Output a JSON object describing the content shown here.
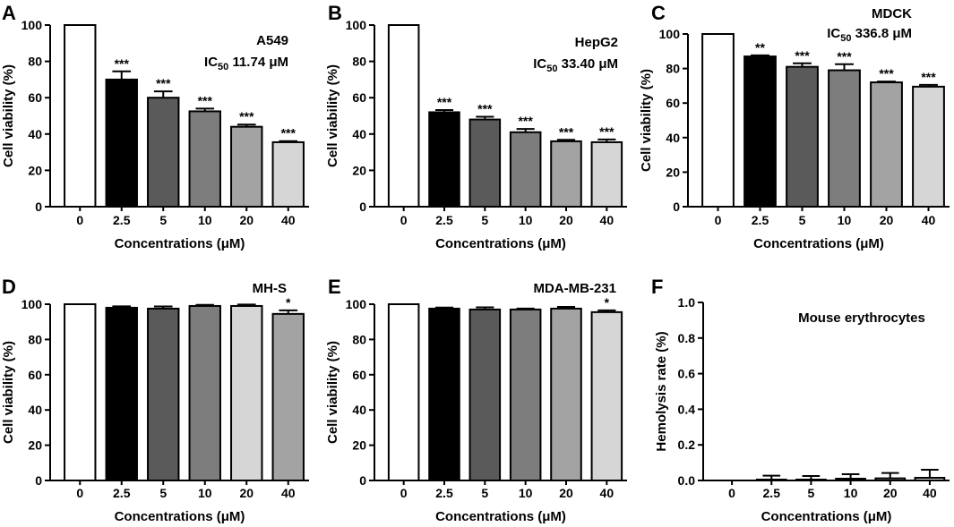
{
  "figure": {
    "xlabel": "Concentrations (μM)",
    "ylabel_viability": "Cell viability (%)",
    "ylabel_hemolysis": "Hemolysis rate (%)"
  },
  "colors": {
    "bar_fills": [
      "#ffffff",
      "#000000",
      "#5a5a5a",
      "#7d7d7d",
      "#a3a3a3",
      "#d6d6d6"
    ],
    "panel_d_fills": [
      "#ffffff",
      "#000000",
      "#5a5a5a",
      "#7d7d7d",
      "#d6d6d6",
      "#a3a3a3"
    ],
    "stroke": "#000000"
  },
  "chart_data": [
    {
      "panel": "A",
      "type": "bar",
      "label_line1": "A549",
      "ic50_prefix": "IC",
      "ic50_sub": "50",
      "ic50_value": " 11.74 μM",
      "categories": [
        "0",
        "2.5",
        "5",
        "10",
        "20",
        "40"
      ],
      "values": [
        100,
        70,
        60,
        52.5,
        44,
        35.5
      ],
      "errors": [
        0,
        4.5,
        3.5,
        1.5,
        1.2,
        0.6
      ],
      "significance": [
        "",
        "***",
        "***",
        "***",
        "***",
        "***"
      ],
      "ylim": [
        0,
        100
      ],
      "yticks": [
        "0",
        "20",
        "40",
        "60",
        "80",
        "100"
      ],
      "xlabel": "Concentrations (μM)",
      "ylabel": "Cell viability (%)"
    },
    {
      "panel": "B",
      "type": "bar",
      "label_line1": "HepG2",
      "ic50_prefix": "IC",
      "ic50_sub": "50",
      "ic50_value": " 33.40 μM",
      "categories": [
        "0",
        "2.5",
        "5",
        "10",
        "20",
        "40"
      ],
      "values": [
        100,
        52,
        48,
        41,
        36,
        35.5
      ],
      "errors": [
        0,
        1.2,
        1.5,
        1.8,
        0.8,
        1.5
      ],
      "significance": [
        "",
        "***",
        "***",
        "***",
        "***",
        "***"
      ],
      "ylim": [
        0,
        100
      ],
      "yticks": [
        "0",
        "20",
        "40",
        "60",
        "80",
        "100"
      ],
      "xlabel": "Concentrations (μM)",
      "ylabel": "Cell viability (%)"
    },
    {
      "panel": "C",
      "type": "bar",
      "label_line1": "MDCK",
      "ic50_prefix": "IC",
      "ic50_sub": "50",
      "ic50_value": " 336.8 μM",
      "categories": [
        "0",
        "2.5",
        "5",
        "10",
        "20",
        "40"
      ],
      "values": [
        100,
        87,
        81,
        79,
        72,
        69.5
      ],
      "errors": [
        0,
        0.6,
        2,
        3.5,
        0.5,
        1
      ],
      "significance": [
        "",
        "**",
        "***",
        "***",
        "***",
        "***"
      ],
      "ylim": [
        0,
        100
      ],
      "yticks": [
        "0",
        "20",
        "40",
        "60",
        "80",
        "100"
      ],
      "xlabel": "Concentrations (μM)",
      "ylabel": "Cell viability (%)"
    },
    {
      "panel": "D",
      "type": "bar",
      "label_line1": "MH-S",
      "categories": [
        "0",
        "2.5",
        "5",
        "10",
        "20",
        "40"
      ],
      "values": [
        100,
        98,
        97.5,
        99,
        99,
        94.5
      ],
      "errors": [
        0,
        0.8,
        1.2,
        0.6,
        0.8,
        2
      ],
      "significance": [
        "",
        "",
        "",
        "",
        "",
        "*"
      ],
      "ylim": [
        0,
        100
      ],
      "yticks": [
        "0",
        "20",
        "40",
        "60",
        "80",
        "100"
      ],
      "xlabel": "Concentrations (μM)",
      "ylabel": "Cell viability (%)"
    },
    {
      "panel": "E",
      "type": "bar",
      "label_line1": "MDA-MB-231",
      "categories": [
        "0",
        "2.5",
        "5",
        "10",
        "20",
        "40"
      ],
      "values": [
        100,
        97.5,
        97,
        97,
        97.5,
        95.5
      ],
      "errors": [
        0,
        0.6,
        1.2,
        0.5,
        1,
        1
      ],
      "significance": [
        "",
        "",
        "",
        "",
        "",
        "*"
      ],
      "ylim": [
        0,
        100
      ],
      "yticks": [
        "0",
        "20",
        "40",
        "60",
        "80",
        "100"
      ],
      "xlabel": "Concentrations (μM)",
      "ylabel": "Cell viability (%)"
    },
    {
      "panel": "F",
      "type": "bar",
      "label_line1": "Mouse erythrocytes",
      "categories": [
        "0",
        "2.5",
        "5",
        "10",
        "20",
        "40"
      ],
      "values": [
        0,
        0.005,
        0.005,
        0.01,
        0.012,
        0.015
      ],
      "errors": [
        0,
        0.022,
        0.02,
        0.025,
        0.03,
        0.045
      ],
      "significance": [
        "",
        "",
        "",
        "",
        "",
        ""
      ],
      "ylim": [
        0,
        1.0
      ],
      "yticks": [
        "0.0",
        "0.2",
        "0.4",
        "0.6",
        "0.8",
        "1.0"
      ],
      "xlabel": "Concentrations (μM)",
      "ylabel": "Hemolysis rate (%)"
    }
  ]
}
